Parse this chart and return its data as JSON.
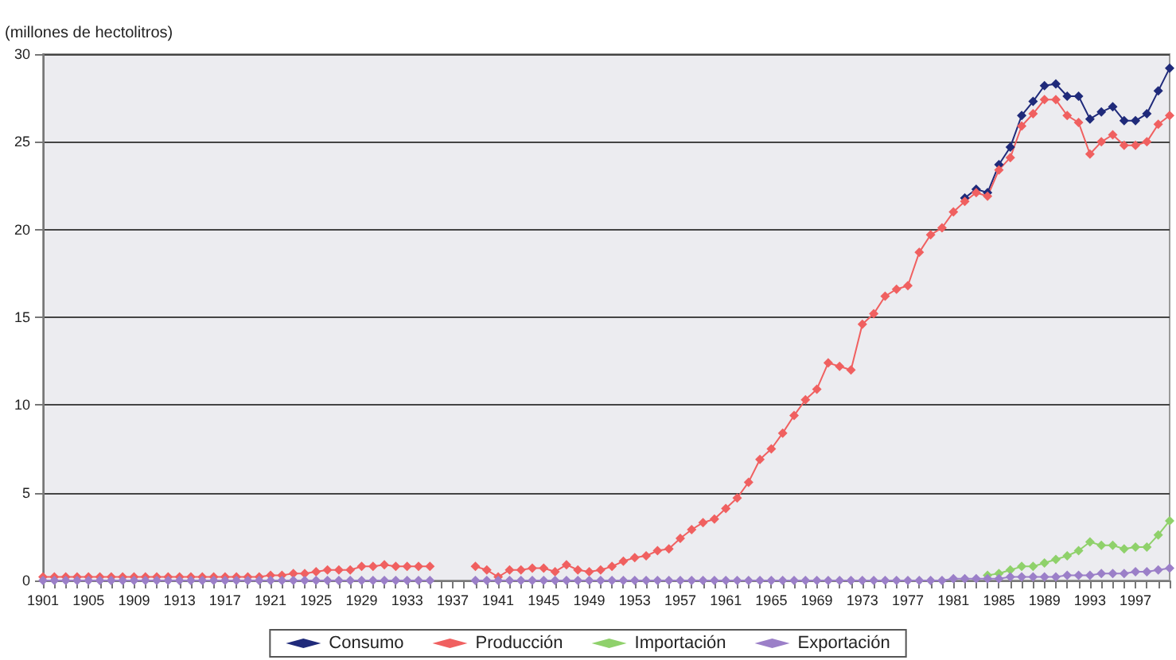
{
  "chart_data": {
    "type": "line",
    "ylabel": "(millones de hectolitros)",
    "categories": [
      "1901",
      null,
      null,
      null,
      "1905",
      null,
      null,
      null,
      "1909",
      null,
      null,
      null,
      "1913",
      null,
      null,
      null,
      "1917",
      null,
      null,
      null,
      "1921",
      null,
      null,
      null,
      "1925",
      null,
      null,
      null,
      "1929",
      null,
      null,
      null,
      "1933",
      null,
      null,
      null,
      "1937",
      null,
      null,
      null,
      "1941",
      null,
      null,
      null,
      "1945",
      null,
      null,
      null,
      "1949",
      null,
      null,
      null,
      "1953",
      null,
      null,
      null,
      "1957",
      null,
      null,
      null,
      "1961",
      null,
      null,
      null,
      "1965",
      null,
      null,
      null,
      "1969",
      null,
      null,
      null,
      "1973",
      null,
      null,
      null,
      "1977",
      null,
      null,
      null,
      "1981",
      null,
      null,
      null,
      "1985",
      null,
      null,
      null,
      "1989",
      null,
      null,
      null,
      "1993",
      null,
      null,
      null,
      "1997",
      null,
      null,
      null
    ],
    "series": [
      {
        "name": "Consumo",
        "color": "#1f2a7a",
        "values": [
          null,
          null,
          null,
          null,
          null,
          null,
          null,
          null,
          null,
          null,
          null,
          null,
          null,
          null,
          null,
          null,
          null,
          null,
          null,
          null,
          null,
          null,
          null,
          null,
          null,
          null,
          null,
          null,
          null,
          null,
          null,
          null,
          null,
          null,
          null,
          null,
          null,
          null,
          null,
          null,
          null,
          null,
          null,
          null,
          null,
          null,
          null,
          null,
          null,
          null,
          null,
          null,
          null,
          null,
          null,
          null,
          null,
          null,
          null,
          null,
          null,
          null,
          null,
          null,
          null,
          null,
          null,
          null,
          null,
          null,
          null,
          null,
          null,
          null,
          null,
          null,
          null,
          null,
          null,
          null,
          null,
          21.8,
          22.3,
          22.1,
          23.7,
          24.7,
          26.5,
          27.3,
          28.2,
          28.3,
          27.6,
          27.6,
          26.3,
          26.7,
          27.0,
          26.2,
          26.2,
          26.6,
          27.9,
          29.2
        ]
      },
      {
        "name": "Producción",
        "color": "#f06060",
        "values": [
          0.2,
          0.2,
          0.2,
          0.2,
          0.2,
          0.2,
          0.2,
          0.2,
          0.2,
          0.2,
          0.2,
          0.2,
          0.2,
          0.2,
          0.2,
          0.2,
          0.2,
          0.2,
          0.2,
          0.2,
          0.3,
          0.3,
          0.4,
          0.4,
          0.5,
          0.6,
          0.6,
          0.6,
          0.8,
          0.8,
          0.9,
          0.8,
          0.8,
          0.8,
          0.8,
          null,
          null,
          null,
          0.8,
          0.6,
          0.2,
          0.6,
          0.6,
          0.7,
          0.7,
          0.5,
          0.9,
          0.6,
          0.5,
          0.6,
          0.8,
          1.1,
          1.3,
          1.4,
          1.7,
          1.8,
          2.4,
          2.9,
          3.3,
          3.5,
          4.1,
          4.7,
          5.6,
          6.9,
          7.5,
          8.4,
          9.4,
          10.3,
          10.9,
          12.4,
          12.2,
          12.0,
          14.6,
          15.2,
          16.2,
          16.6,
          16.8,
          18.7,
          19.7,
          20.1,
          21.0,
          21.6,
          22.1,
          21.9,
          23.4,
          24.1,
          25.9,
          26.6,
          27.4,
          27.4,
          26.5,
          26.1,
          24.3,
          25.0,
          25.4,
          24.8,
          24.8,
          25.0,
          26.0,
          26.5
        ]
      },
      {
        "name": "Importación",
        "color": "#8fd16b",
        "values": [
          null,
          null,
          null,
          null,
          null,
          null,
          null,
          null,
          null,
          null,
          null,
          null,
          null,
          null,
          null,
          null,
          null,
          null,
          null,
          null,
          null,
          null,
          null,
          null,
          null,
          null,
          null,
          null,
          null,
          null,
          null,
          null,
          null,
          null,
          null,
          null,
          null,
          null,
          null,
          null,
          null,
          null,
          null,
          null,
          null,
          null,
          null,
          null,
          null,
          null,
          null,
          null,
          null,
          null,
          null,
          null,
          null,
          null,
          null,
          null,
          null,
          null,
          null,
          null,
          null,
          null,
          null,
          null,
          null,
          null,
          null,
          null,
          null,
          null,
          null,
          null,
          null,
          null,
          null,
          null,
          null,
          null,
          null,
          0.3,
          0.4,
          0.6,
          0.8,
          0.8,
          1.0,
          1.2,
          1.4,
          1.7,
          2.2,
          2.0,
          2.0,
          1.8,
          1.9,
          1.9,
          2.6,
          3.4
        ]
      },
      {
        "name": "Exportación",
        "color": "#9b7fc8",
        "values": [
          0,
          0,
          0,
          0,
          0,
          0,
          0,
          0,
          0,
          0,
          0,
          0,
          0,
          0,
          0,
          0,
          0,
          0,
          0,
          0,
          0,
          0,
          0,
          0,
          0,
          0,
          0,
          0,
          0,
          0,
          0,
          0,
          0,
          0,
          0,
          null,
          null,
          null,
          0,
          0,
          0,
          0,
          0,
          0,
          0,
          0,
          0,
          0,
          0,
          0,
          0,
          0,
          0,
          0,
          0,
          0,
          0,
          0,
          0,
          0,
          0,
          0,
          0,
          0,
          0,
          0,
          0,
          0,
          0,
          0,
          0,
          0,
          0,
          0,
          0,
          0,
          0,
          0,
          0,
          0,
          0.1,
          0.1,
          0.1,
          0.1,
          0.1,
          0.2,
          0.2,
          0.2,
          0.2,
          0.2,
          0.3,
          0.3,
          0.3,
          0.4,
          0.4,
          0.4,
          0.5,
          0.5,
          0.6,
          0.7
        ]
      }
    ],
    "ylim": [
      0,
      30
    ],
    "yticks": [
      0,
      5,
      10,
      15,
      20,
      25,
      30
    ],
    "grid": "y",
    "legend": "bottom",
    "marker": "diamond",
    "line_style": "solid"
  }
}
